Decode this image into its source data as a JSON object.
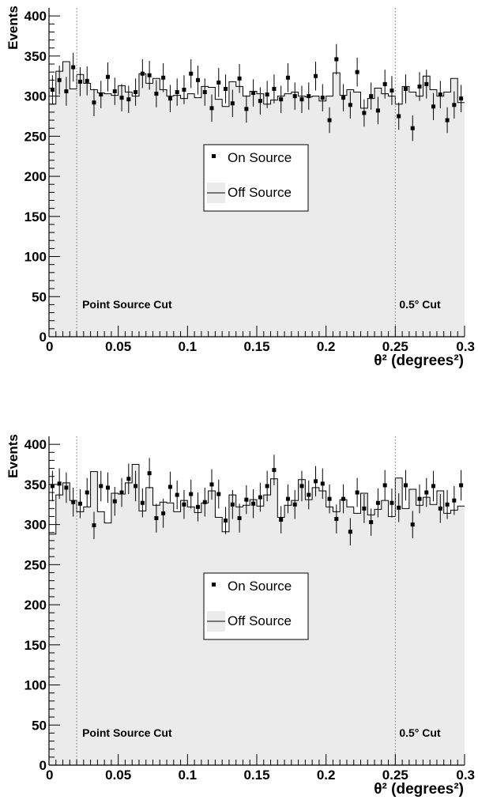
{
  "chart_data": [
    {
      "type": "histogram-with-points",
      "xlabel": "θ² (degrees²)",
      "ylabel": "Events",
      "xlim": [
        0,
        0.3
      ],
      "ylim": [
        0,
        410
      ],
      "x_ticks": [
        "0",
        "0.05",
        "0.1",
        "0.15",
        "0.2",
        "0.25",
        "0.3"
      ],
      "y_ticks": [
        "0",
        "50",
        "100",
        "150",
        "200",
        "250",
        "300",
        "350",
        "400"
      ],
      "bin_width": 0.005,
      "series": [
        {
          "name": "On Source",
          "marker": "square",
          "values": [
            308,
            320,
            306,
            336,
            318,
            319,
            292,
            302,
            324,
            306,
            298,
            296,
            305,
            328,
            326,
            303,
            323,
            297,
            305,
            308,
            328,
            320,
            305,
            285,
            317,
            309,
            291,
            322,
            284,
            304,
            294,
            302,
            309,
            296,
            323,
            300,
            296,
            300,
            325,
            298,
            270,
            346,
            298,
            289,
            330,
            279,
            300,
            282,
            315,
            307,
            275,
            309,
            260,
            312,
            315,
            287,
            302,
            270,
            289,
            297
          ],
          "errors": [
            18,
            18,
            18,
            18,
            18,
            18,
            17,
            17,
            18,
            17,
            17,
            17,
            17,
            18,
            18,
            17,
            18,
            17,
            17,
            18,
            18,
            18,
            17,
            17,
            18,
            18,
            17,
            18,
            17,
            17,
            17,
            17,
            18,
            17,
            18,
            17,
            17,
            17,
            18,
            17,
            16,
            19,
            17,
            17,
            18,
            17,
            17,
            17,
            18,
            18,
            17,
            18,
            16,
            18,
            18,
            17,
            17,
            16,
            17,
            17
          ]
        },
        {
          "name": "Off Source",
          "style": "filled-step",
          "values": [
            290,
            331,
            343,
            309,
            327,
            316,
            308,
            304,
            303,
            301,
            313,
            305,
            300,
            328,
            316,
            322,
            308,
            300,
            301,
            297,
            303,
            298,
            312,
            311,
            296,
            287,
            318,
            312,
            300,
            306,
            303,
            290,
            295,
            300,
            303,
            305,
            300,
            299,
            300,
            294,
            300,
            329,
            301,
            308,
            305,
            285,
            297,
            310,
            303,
            300,
            290,
            312,
            305,
            300,
            325,
            308,
            300,
            305,
            322,
            292
          ]
        }
      ],
      "annotations": [
        {
          "text": "Point Source Cut",
          "x_line": 0.02
        },
        {
          "text": "0.5° Cut",
          "x_line": 0.25
        }
      ],
      "legend": [
        "On Source",
        "Off Source"
      ],
      "legend_position": "center"
    },
    {
      "type": "histogram-with-points",
      "xlabel": "θ² (degrees²)",
      "ylabel": "Events",
      "xlim": [
        0,
        0.3
      ],
      "ylim": [
        0,
        410
      ],
      "x_ticks": [
        "0",
        "0.05",
        "0.1",
        "0.15",
        "0.2",
        "0.25",
        "0.3"
      ],
      "y_ticks": [
        "0",
        "50",
        "100",
        "150",
        "200",
        "250",
        "300",
        "350",
        "400"
      ],
      "bin_width": 0.005,
      "series": [
        {
          "name": "On Source",
          "marker": "square",
          "values": [
            348,
            351,
            346,
            328,
            326,
            340,
            299,
            348,
            346,
            329,
            340,
            357,
            348,
            327,
            364,
            308,
            314,
            347,
            337,
            325,
            338,
            322,
            328,
            350,
            338,
            305,
            325,
            308,
            331,
            326,
            334,
            348,
            368,
            306,
            332,
            325,
            348,
            337,
            354,
            351,
            332,
            307,
            332,
            291,
            340,
            320,
            303,
            327,
            349,
            327,
            321,
            349,
            300,
            332,
            340,
            348,
            320,
            325,
            330,
            349
          ],
          "errors": [
            19,
            19,
            19,
            18,
            18,
            18,
            17,
            19,
            19,
            18,
            18,
            19,
            19,
            18,
            19,
            18,
            18,
            19,
            18,
            18,
            18,
            18,
            18,
            19,
            18,
            17,
            18,
            18,
            18,
            18,
            18,
            19,
            19,
            17,
            18,
            18,
            19,
            18,
            19,
            19,
            18,
            18,
            18,
            17,
            18,
            18,
            17,
            18,
            19,
            18,
            18,
            19,
            17,
            18,
            18,
            19,
            18,
            18,
            18,
            19
          ]
        },
        {
          "name": "Off Source",
          "style": "filled-step",
          "values": [
            288,
            337,
            352,
            330,
            316,
            322,
            366,
            316,
            302,
            339,
            338,
            352,
            375,
            317,
            346,
            324,
            328,
            327,
            316,
            330,
            322,
            315,
            327,
            342,
            309,
            291,
            337,
            322,
            324,
            331,
            323,
            337,
            357,
            309,
            324,
            330,
            356,
            331,
            346,
            342,
            322,
            316,
            331,
            322,
            314,
            339,
            312,
            319,
            330,
            310,
            358,
            320,
            344,
            324,
            334,
            325,
            342,
            314,
            318,
            323
          ]
        }
      ],
      "annotations": [
        {
          "text": "Point Source Cut",
          "x_line": 0.02
        },
        {
          "text": "0.5° Cut",
          "x_line": 0.25
        }
      ],
      "legend": [
        "On Source",
        "Off Source"
      ],
      "legend_position": "center"
    }
  ],
  "colors": {
    "fill": "#ebebeb",
    "line": "#000000",
    "marker": "#000000",
    "cut_line": "#777777"
  }
}
